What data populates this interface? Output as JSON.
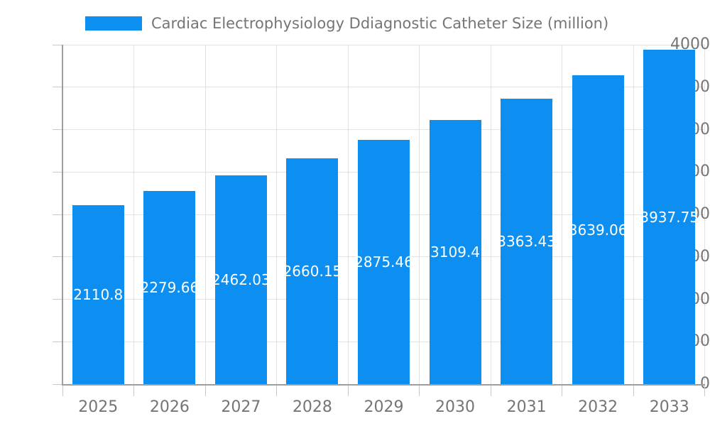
{
  "legend": {
    "label": "Cardiac Electrophysiology Ddiagnostic Catheter Size (million)"
  },
  "chart_data": {
    "type": "bar",
    "title": "Cardiac Electrophysiology Ddiagnostic Catheter Size (million)",
    "categories": [
      "2025",
      "2026",
      "2027",
      "2028",
      "2029",
      "2030",
      "2031",
      "2032",
      "2033"
    ],
    "series": [
      {
        "name": "Cardiac Electrophysiology Ddiagnostic Catheter Size (million)",
        "values": [
          2110.8,
          2279.66,
          2462.03,
          2660.15,
          2875.46,
          3109.4,
          3363.43,
          3639.06,
          3937.75
        ]
      }
    ],
    "value_labels": [
      "2110.8",
      "2279.66",
      "2462.03",
      "2660.15",
      "2875.46",
      "3109.4",
      "3363.43",
      "3639.06",
      "3937.75"
    ],
    "xlabel": "",
    "ylabel": "",
    "ylim": [
      0,
      4000
    ],
    "yticks": [
      0,
      500,
      1000,
      1500,
      2000,
      2500,
      3000,
      3500,
      4000
    ],
    "grid": true,
    "legend_position": "top-left",
    "colors": {
      "bar": "#0d8ff2",
      "value_label": "#ffffff",
      "axis_text": "#757575",
      "gridline": "#e2e2e2",
      "axis_line": "#9e9e9e",
      "tick": "#c9c9c9"
    }
  }
}
